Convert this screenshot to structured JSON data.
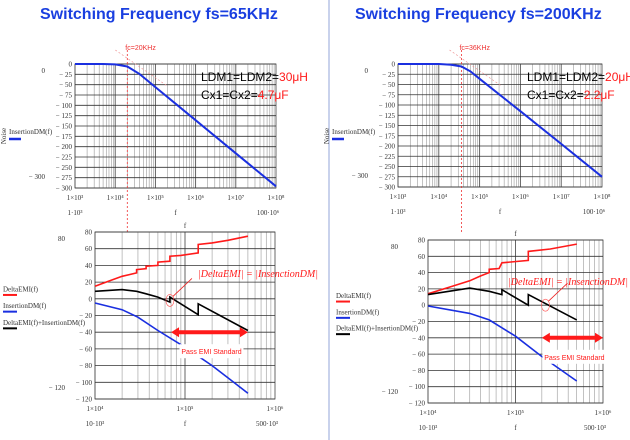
{
  "panels": [
    {
      "title": "Switching Frequency fs=65KHz",
      "params": {
        "line1_prefix": "LDM1=LDM2=",
        "line1_value": "30μH",
        "line2_prefix": "Cx1=Cx2=",
        "line2_value": "4.7μF"
      },
      "fc_label": "fc=20KHz",
      "annotation": "|DeltaEMI| = |InsenctionDM|",
      "pass_label": "Pass EMI Standard"
    },
    {
      "title": "Switching Frequency fs=200KHz",
      "params": {
        "line1_prefix": "LDM1=LDM2=",
        "line1_value": "20μH",
        "line2_prefix": "Cx1=Cx2=",
        "line2_value": "2.2μF"
      },
      "fc_label": "fc=36KHz",
      "annotation": "|DeltaEMI| = |InsenctionDM|",
      "pass_label": "Pass EMI Standard"
    }
  ],
  "colors": {
    "title": "#1a3fe0",
    "delta": "#ff1a1a",
    "insertion": "#1a2fe0",
    "sum": "#000000",
    "highlight": "#ff1a1a"
  },
  "chart_data": [
    {
      "type": "line",
      "panel": 0,
      "xscale": "log",
      "xlim": [
        1000,
        100000000
      ],
      "ylim": [
        -300,
        0
      ],
      "grid": true,
      "ylabel": "Noise",
      "xlabel": "f",
      "xticks": [
        "1×10³",
        "1×10⁴",
        "1×10⁵",
        "1×10⁶",
        "1×10⁷",
        "1×10⁸"
      ],
      "yticks": [
        "0",
        "− 25",
        "− 50",
        "− 75",
        "− 100",
        "− 125",
        "− 150",
        "− 175",
        "− 200",
        "− 225",
        "− 250",
        "− 275",
        "− 300"
      ],
      "ymarks": [
        "0",
        "− 300"
      ],
      "xrange_labels": [
        "1·10³",
        "100·10⁶"
      ],
      "fc": 20000,
      "series": [
        {
          "name": "InsertionDM(f)",
          "color": "#1a2fe0",
          "points": [
            [
              1000,
              0
            ],
            [
              5000,
              0
            ],
            [
              10000,
              -1
            ],
            [
              20000,
              -6
            ],
            [
              40000,
              -24
            ],
            [
              100000,
              -56
            ],
            [
              1000000,
              -136
            ],
            [
              10000000,
              -216
            ],
            [
              100000000,
              -296
            ]
          ]
        }
      ]
    },
    {
      "type": "line",
      "panel": 1,
      "xscale": "log",
      "xlim": [
        1000,
        100000000
      ],
      "ylim": [
        -300,
        0
      ],
      "grid": true,
      "ylabel": "Noise",
      "xlabel": "f",
      "xticks": [
        "1×10³",
        "1×10⁴",
        "1×10⁵",
        "1×10⁶",
        "1×10⁷",
        "1×10⁸"
      ],
      "yticks": [
        "0",
        "− 25",
        "− 50",
        "− 75",
        "− 100",
        "− 125",
        "− 150",
        "− 175",
        "− 200",
        "− 225",
        "− 250",
        "− 275",
        "− 300"
      ],
      "ymarks": [
        "0",
        "− 300"
      ],
      "xrange_labels": [
        "1·10³",
        "100·10⁶"
      ],
      "fc": 36000,
      "series": [
        {
          "name": "InsertionDM(f)",
          "color": "#1a2fe0",
          "points": [
            [
              1000,
              0
            ],
            [
              10000,
              0
            ],
            [
              20000,
              -2
            ],
            [
              36000,
              -6
            ],
            [
              60000,
              -18
            ],
            [
              100000,
              -36
            ],
            [
              1000000,
              -115
            ],
            [
              10000000,
              -195
            ],
            [
              100000000,
              -275
            ]
          ]
        }
      ]
    },
    {
      "type": "line",
      "panel": 0,
      "xscale": "log",
      "xlim": [
        10000,
        1000000
      ],
      "ylim": [
        -120,
        80
      ],
      "grid": true,
      "xlabel": "f",
      "xticks": [
        "1×10⁴",
        "1×10⁵",
        "1×10⁶"
      ],
      "yticks": [
        "80",
        "60",
        "40",
        "20",
        "0",
        "− 20",
        "− 40",
        "− 60",
        "− 80",
        "− 100",
        "− 120"
      ],
      "ymarks": [
        "80",
        "− 120"
      ],
      "xrange_labels": [
        "10·10³",
        "500·10³"
      ],
      "pass_range": [
        70000,
        500000
      ],
      "pass_level": -40,
      "highlight": [
        68000,
        -2
      ],
      "series": [
        {
          "name": "DeltaEMI(f)",
          "color": "#ff1a1a",
          "points": [
            [
              10000,
              15
            ],
            [
              15000,
              22
            ],
            [
              20000,
              27
            ],
            [
              29000,
              31
            ],
            [
              29000,
              35
            ],
            [
              37000,
              36
            ],
            [
              37000,
              39
            ],
            [
              50000,
              40
            ],
            [
              50000,
              44
            ],
            [
              68000,
              45
            ],
            [
              68000,
              51
            ],
            [
              90000,
              52
            ],
            [
              140000,
              55
            ],
            [
              140000,
              65
            ],
            [
              200000,
              67
            ],
            [
              300000,
              70
            ],
            [
              500000,
              75
            ]
          ]
        },
        {
          "name": "InsertionDM(f)",
          "color": "#1a2fe0",
          "points": [
            [
              10000,
              -5
            ],
            [
              20000,
              -13
            ],
            [
              30000,
              -22
            ],
            [
              50000,
              -38
            ],
            [
              100000,
              -58
            ],
            [
              200000,
              -80
            ],
            [
              500000,
              -113
            ]
          ]
        },
        {
          "name": "DeltaEMI(f)+InsertionDM(f)",
          "color": "#000000",
          "points": [
            [
              10000,
              9
            ],
            [
              20000,
              11
            ],
            [
              29000,
              9
            ],
            [
              37000,
              6
            ],
            [
              50000,
              2
            ],
            [
              68000,
              -4
            ],
            [
              68000,
              2
            ],
            [
              140000,
              -19
            ],
            [
              140000,
              -6
            ],
            [
              500000,
              -38
            ]
          ]
        }
      ]
    },
    {
      "type": "line",
      "panel": 1,
      "xscale": "log",
      "xlim": [
        10000,
        1000000
      ],
      "ylim": [
        -120,
        80
      ],
      "grid": true,
      "xlabel": "f",
      "xticks": [
        "1×10⁴",
        "1×10⁵",
        "1×10⁶"
      ],
      "yticks": [
        "80",
        "60",
        "40",
        "20",
        "0",
        "− 20",
        "− 40",
        "− 60",
        "− 80",
        "− 100",
        "− 120"
      ],
      "ymarks": [
        "80",
        "− 120"
      ],
      "xrange_labels": [
        "10·10³",
        "500·10³"
      ],
      "pass_range": [
        200000,
        1000000
      ],
      "pass_level": -40,
      "highlight": [
        220000,
        0
      ],
      "series": [
        {
          "name": "DeltaEMI(f)",
          "color": "#ff1a1a",
          "points": [
            [
              10000,
              14
            ],
            [
              20000,
              24
            ],
            [
              30000,
              30
            ],
            [
              40000,
              36
            ],
            [
              50000,
              40
            ],
            [
              50000,
              44
            ],
            [
              65000,
              45
            ],
            [
              70000,
              52
            ],
            [
              140000,
              55
            ],
            [
              140000,
              66
            ],
            [
              250000,
              69
            ],
            [
              500000,
              75
            ]
          ]
        },
        {
          "name": "InsertionDM(f)",
          "color": "#1a2fe0",
          "points": [
            [
              10000,
              -1
            ],
            [
              30000,
              -10
            ],
            [
              50000,
              -18
            ],
            [
              100000,
              -38
            ],
            [
              200000,
              -63
            ],
            [
              500000,
              -93
            ]
          ]
        },
        {
          "name": "DeltaEMI(f)+InsertionDM(f)",
          "color": "#000000",
          "points": [
            [
              10000,
              13
            ],
            [
              30000,
              21
            ],
            [
              50000,
              17
            ],
            [
              70000,
              13
            ],
            [
              70000,
              19
            ],
            [
              140000,
              0
            ],
            [
              140000,
              13
            ],
            [
              500000,
              -18
            ]
          ]
        }
      ]
    }
  ]
}
